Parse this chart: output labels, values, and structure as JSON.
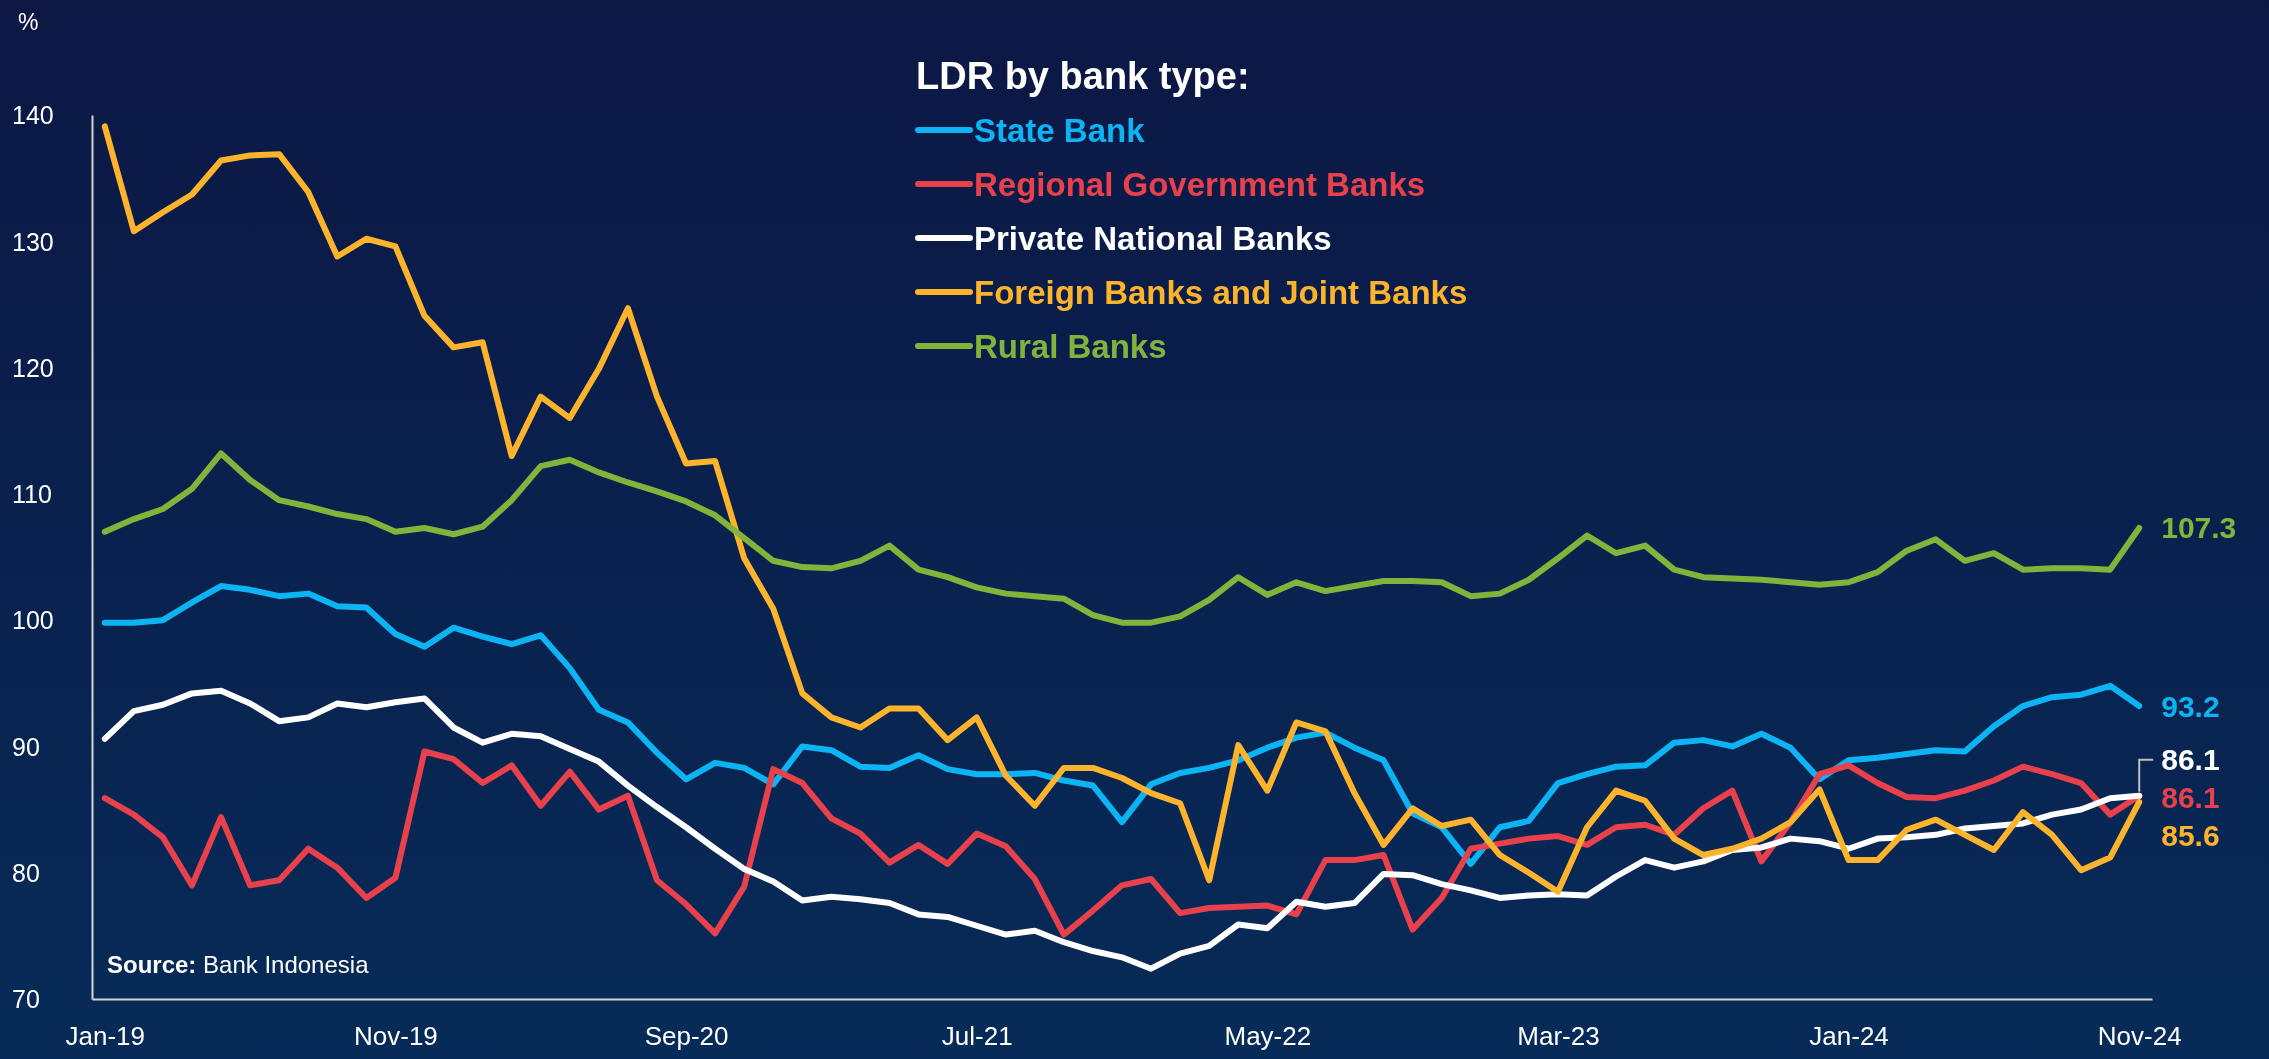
{
  "chart_data": {
    "type": "line",
    "legend_title": "LDR by bank type:",
    "ylabel": "%",
    "annotations": [
      "Source: Bank Indonesia"
    ],
    "legend": "top",
    "categories": [
      "Jan-19",
      null,
      null,
      null,
      null,
      null,
      null,
      null,
      null,
      null,
      "Nov-19",
      null,
      null,
      null,
      null,
      null,
      null,
      null,
      null,
      null,
      "Sep-20",
      null,
      null,
      null,
      null,
      null,
      null,
      null,
      null,
      null,
      "Jul-21",
      null,
      null,
      null,
      null,
      null,
      null,
      null,
      null,
      null,
      "May-22",
      null,
      null,
      null,
      null,
      null,
      null,
      null,
      null,
      null,
      "Mar-23",
      null,
      null,
      null,
      null,
      null,
      null,
      null,
      null,
      null,
      "Jan-24",
      null,
      null,
      null,
      null,
      null,
      null,
      null,
      null,
      null,
      "Nov-24"
    ],
    "ylim": [
      70,
      140
    ],
    "yticks": [
      70,
      80,
      90,
      100,
      110,
      120,
      130,
      140
    ],
    "series": [
      {
        "name": "State Bank",
        "color": "#0cb4f4",
        "values": [
          99.8,
          99.8,
          100.0,
          101.4,
          102.7,
          102.4,
          101.9,
          102.1,
          101.1,
          101.0,
          98.9,
          97.9,
          99.4,
          98.7,
          98.1,
          98.8,
          96.2,
          92.9,
          91.9,
          89.5,
          87.4,
          88.7,
          88.3,
          87.0,
          90.0,
          89.7,
          88.4,
          88.3,
          89.3,
          88.2,
          87.8,
          87.8,
          87.9,
          87.3,
          86.9,
          84.0,
          87.0,
          87.9,
          88.3,
          88.9,
          89.9,
          90.7,
          91.1,
          89.9,
          88.9,
          84.7,
          83.6,
          80.7,
          83.6,
          84.1,
          87.1,
          87.8,
          88.4,
          88.5,
          90.3,
          90.5,
          90.0,
          91.0,
          89.9,
          87.4,
          88.9,
          89.1,
          89.4,
          89.7,
          89.6,
          91.6,
          93.2,
          93.9,
          94.1,
          94.8,
          93.2
        ],
        "value_labels": [
          null,
          null,
          null,
          null,
          null,
          null,
          null,
          null,
          null,
          null,
          null,
          null,
          null,
          null,
          null,
          null,
          null,
          null,
          null,
          null,
          null,
          null,
          null,
          null,
          null,
          null,
          null,
          null,
          null,
          null,
          null,
          null,
          null,
          null,
          null,
          null,
          null,
          null,
          null,
          null,
          null,
          null,
          null,
          null,
          null,
          null,
          null,
          null,
          null,
          null,
          null,
          null,
          null,
          null,
          null,
          null,
          null,
          null,
          null,
          null,
          null,
          null,
          null,
          null,
          null,
          null,
          null,
          null,
          null,
          null,
          "93.2"
        ]
      },
      {
        "name": "Regional Government Banks",
        "color": "#e8414b",
        "values": [
          85.9,
          84.6,
          82.8,
          79.0,
          84.4,
          79.0,
          79.4,
          81.9,
          80.4,
          78.0,
          79.6,
          89.6,
          89.0,
          87.1,
          88.5,
          85.3,
          88.0,
          85.0,
          86.1,
          79.4,
          77.5,
          75.2,
          78.9,
          88.2,
          87.1,
          84.3,
          83.1,
          80.8,
          82.2,
          80.7,
          83.1,
          82.1,
          79.5,
          75.1,
          77.0,
          79.0,
          79.5,
          76.8,
          77.2,
          77.3,
          77.4,
          76.7,
          81.0,
          81.0,
          81.4,
          75.5,
          78.0,
          81.9,
          82.3,
          82.7,
          82.9,
          82.2,
          83.6,
          83.8,
          83.0,
          85.1,
          86.5,
          80.9,
          84.0,
          87.8,
          88.5,
          87.1,
          86.0,
          85.9,
          86.5,
          87.3,
          88.4,
          87.8,
          87.1,
          84.6,
          86.1
        ],
        "value_labels": [
          null,
          null,
          null,
          null,
          null,
          null,
          null,
          null,
          null,
          null,
          null,
          null,
          null,
          null,
          null,
          null,
          null,
          null,
          null,
          null,
          null,
          null,
          null,
          null,
          null,
          null,
          null,
          null,
          null,
          null,
          null,
          null,
          null,
          null,
          null,
          null,
          null,
          null,
          null,
          null,
          null,
          null,
          null,
          null,
          null,
          null,
          null,
          null,
          null,
          null,
          null,
          null,
          null,
          null,
          null,
          null,
          null,
          null,
          null,
          null,
          null,
          null,
          null,
          null,
          null,
          null,
          null,
          null,
          null,
          null,
          "86.1"
        ]
      },
      {
        "name": "Private National Banks",
        "color": "#ffffff",
        "values": [
          90.6,
          92.8,
          93.3,
          94.2,
          94.4,
          93.4,
          92.0,
          92.3,
          93.4,
          93.1,
          93.5,
          93.8,
          91.5,
          90.3,
          91.0,
          90.8,
          89.8,
          88.8,
          86.9,
          85.2,
          83.6,
          81.9,
          80.3,
          79.3,
          77.8,
          78.1,
          77.9,
          77.6,
          76.7,
          76.5,
          75.8,
          75.1,
          75.4,
          74.5,
          73.8,
          73.3,
          72.4,
          73.6,
          74.2,
          75.9,
          75.6,
          77.7,
          77.3,
          77.6,
          79.9,
          79.8,
          79.1,
          78.6,
          78.0,
          78.2,
          78.3,
          78.2,
          79.7,
          81.0,
          80.4,
          80.9,
          81.8,
          82.0,
          82.7,
          82.5,
          81.9,
          82.7,
          82.8,
          83.0,
          83.5,
          83.7,
          83.9,
          84.6,
          85.0,
          85.9,
          86.1
        ],
        "value_labels": [
          null,
          null,
          null,
          null,
          null,
          null,
          null,
          null,
          null,
          null,
          null,
          null,
          null,
          null,
          null,
          null,
          null,
          null,
          null,
          null,
          null,
          null,
          null,
          null,
          null,
          null,
          null,
          null,
          null,
          null,
          null,
          null,
          null,
          null,
          null,
          null,
          null,
          null,
          null,
          null,
          null,
          null,
          null,
          null,
          null,
          null,
          null,
          null,
          null,
          null,
          null,
          null,
          null,
          null,
          null,
          null,
          null,
          null,
          null,
          null,
          null,
          null,
          null,
          null,
          null,
          null,
          null,
          null,
          null,
          null,
          "86.1"
        ]
      },
      {
        "name": "Foreign Banks and Joint Banks",
        "color": "#fdb32b",
        "values": [
          139.1,
          130.8,
          132.3,
          133.7,
          136.4,
          136.8,
          136.9,
          133.9,
          128.8,
          130.2,
          129.6,
          124.1,
          121.6,
          122.0,
          113.0,
          117.7,
          116.0,
          119.9,
          124.7,
          117.7,
          112.4,
          112.6,
          104.9,
          100.9,
          94.2,
          92.3,
          91.5,
          93.0,
          93.0,
          90.5,
          92.3,
          87.7,
          85.3,
          88.3,
          88.3,
          87.5,
          86.3,
          85.5,
          79.4,
          90.1,
          86.5,
          91.9,
          91.2,
          86.3,
          82.2,
          85.1,
          83.7,
          84.2,
          81.4,
          80.0,
          78.5,
          83.6,
          86.5,
          85.7,
          82.7,
          81.4,
          81.9,
          82.7,
          84.0,
          86.6,
          81.0,
          81.0,
          83.4,
          84.2,
          83.0,
          81.8,
          84.8,
          83.0,
          80.2,
          81.2,
          85.6
        ],
        "value_labels": [
          null,
          null,
          null,
          null,
          null,
          null,
          null,
          null,
          null,
          null,
          null,
          null,
          null,
          null,
          null,
          null,
          null,
          null,
          null,
          null,
          null,
          null,
          null,
          null,
          null,
          null,
          null,
          null,
          null,
          null,
          null,
          null,
          null,
          null,
          null,
          null,
          null,
          null,
          null,
          null,
          null,
          null,
          null,
          null,
          null,
          null,
          null,
          null,
          null,
          null,
          null,
          null,
          null,
          null,
          null,
          null,
          null,
          null,
          null,
          null,
          null,
          null,
          null,
          null,
          null,
          null,
          null,
          null,
          null,
          null,
          "85.6"
        ]
      },
      {
        "name": "Rural Banks",
        "color": "#82b43c",
        "values": [
          107.0,
          108.0,
          108.8,
          110.4,
          113.2,
          111.1,
          109.5,
          109.0,
          108.4,
          108.0,
          107.0,
          107.3,
          106.8,
          107.4,
          109.5,
          112.2,
          112.7,
          111.7,
          110.9,
          110.2,
          109.4,
          108.3,
          106.5,
          104.7,
          104.2,
          104.1,
          104.7,
          105.9,
          104.0,
          103.4,
          102.6,
          102.1,
          101.9,
          101.7,
          100.4,
          99.8,
          99.8,
          100.3,
          101.6,
          103.4,
          102.0,
          103.0,
          102.3,
          102.7,
          103.1,
          103.1,
          103.0,
          101.9,
          102.1,
          103.2,
          104.9,
          106.7,
          105.3,
          105.9,
          104.0,
          103.4,
          103.3,
          103.2,
          103.0,
          102.8,
          103.0,
          103.8,
          105.5,
          106.4,
          104.7,
          105.3,
          104.0,
          104.1,
          104.1,
          104.0,
          107.3
        ],
        "value_labels": [
          null,
          null,
          null,
          null,
          null,
          null,
          null,
          null,
          null,
          null,
          null,
          null,
          null,
          null,
          null,
          null,
          null,
          null,
          null,
          null,
          null,
          null,
          null,
          null,
          null,
          null,
          null,
          null,
          null,
          null,
          null,
          null,
          null,
          null,
          null,
          null,
          null,
          null,
          null,
          null,
          null,
          null,
          null,
          null,
          null,
          null,
          null,
          null,
          null,
          null,
          null,
          null,
          null,
          null,
          null,
          null,
          null,
          null,
          null,
          null,
          null,
          null,
          null,
          null,
          null,
          null,
          null,
          null,
          null,
          null,
          "107.3"
        ]
      }
    ]
  }
}
